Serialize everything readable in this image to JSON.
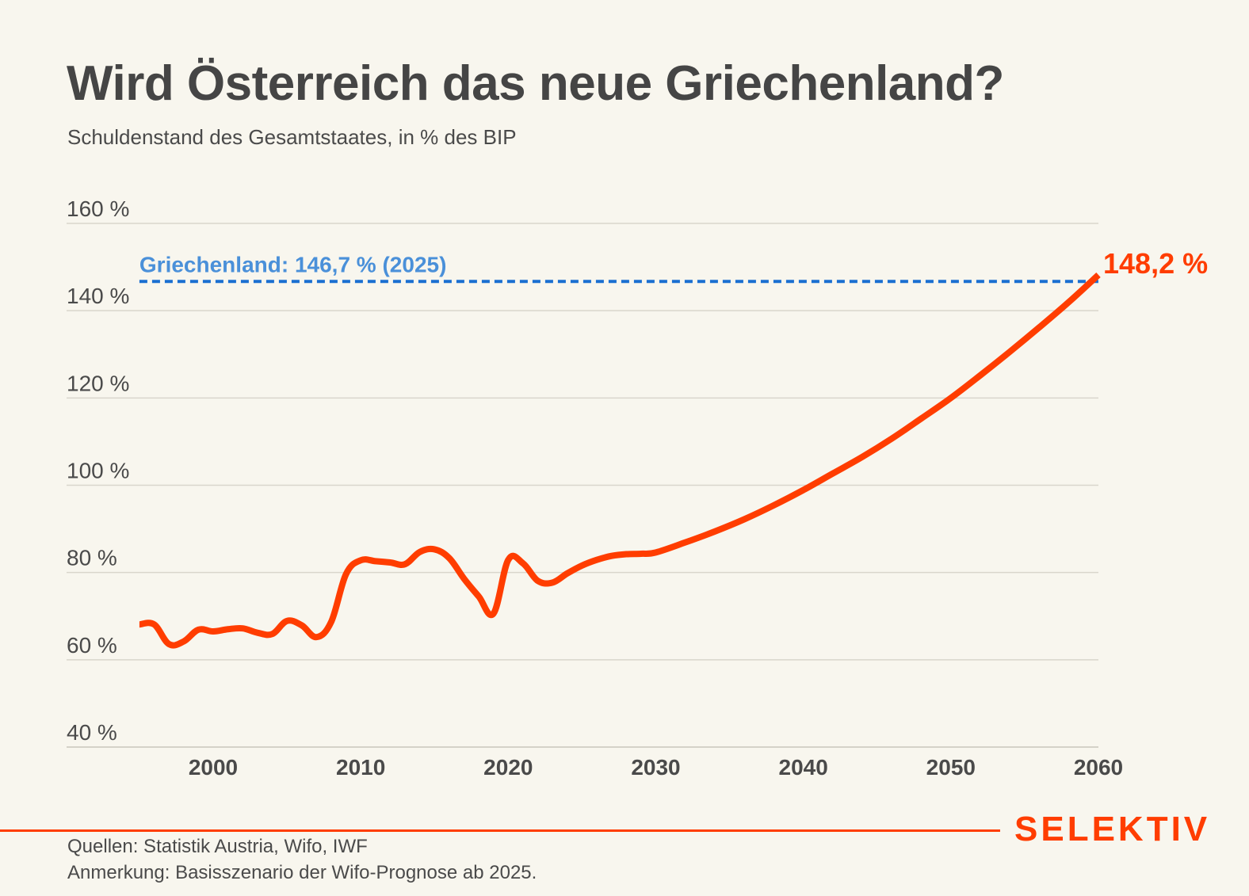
{
  "header": {
    "title": "Wird Österreich das neue Griechenland?",
    "subtitle": "Schuldenstand des Gesamtstaates, in % des BIP"
  },
  "chart_data": {
    "type": "line",
    "title": "Wird Österreich das neue Griechenland?",
    "subtitle": "Schuldenstand des Gesamtstaates, in % des BIP",
    "xlabel": "",
    "ylabel": "",
    "xlim": [
      1995,
      2060
    ],
    "ylim": [
      40,
      160
    ],
    "grid": true,
    "y_ticks": [
      160,
      140,
      120,
      100,
      80,
      60,
      40
    ],
    "y_tick_labels": [
      "160 %",
      "140 %",
      "120 %",
      "100 %",
      "80 %",
      "60 %",
      "40 %"
    ],
    "x_ticks": [
      2000,
      2010,
      2020,
      2030,
      2040,
      2050,
      2060
    ],
    "x_tick_labels": [
      "2000",
      "2010",
      "2020",
      "2030",
      "2040",
      "2050",
      "2060"
    ],
    "series": [
      {
        "name": "Österreich",
        "color": "#ff3d00",
        "x": [
          1995,
          1996,
          1997,
          1998,
          1999,
          2000,
          2001,
          2002,
          2003,
          2004,
          2005,
          2006,
          2007,
          2008,
          2009,
          2010,
          2011,
          2012,
          2013,
          2014,
          2015,
          2016,
          2017,
          2018,
          2019,
          2020,
          2021,
          2022,
          2023,
          2024,
          2025,
          2026,
          2027,
          2028,
          2029,
          2030,
          2032,
          2034,
          2036,
          2038,
          2040,
          2042,
          2044,
          2046,
          2048,
          2050,
          2052,
          2054,
          2056,
          2058,
          2060
        ],
        "values": [
          68.1,
          68.1,
          63.6,
          64.2,
          66.9,
          66.5,
          67.0,
          67.2,
          66.2,
          65.9,
          68.9,
          67.9,
          65.2,
          68.7,
          79.6,
          82.8,
          82.6,
          82.3,
          81.9,
          84.7,
          85.3,
          83.3,
          78.6,
          74.5,
          70.6,
          82.9,
          82.1,
          78.1,
          77.7,
          79.8,
          81.6,
          82.9,
          83.8,
          84.2,
          84.3,
          84.6,
          86.9,
          89.4,
          92.2,
          95.4,
          98.9,
          102.7,
          106.5,
          110.7,
          115.3,
          120.0,
          125.2,
          130.6,
          136.2,
          142.0,
          148.2
        ],
        "end_label": "148,2 %"
      }
    ],
    "reference_lines": [
      {
        "name": "Griechenland",
        "value": 146.7,
        "x_start": 1995,
        "x_end": 2060,
        "style": "dashed",
        "color": "#1a6fd1",
        "label": "Griechenland: 146,7 % (2025)",
        "label_color": "#4a90d9"
      }
    ]
  },
  "footer": {
    "sources": "Quellen: Statistik Austria, Wifo, IWF",
    "note": "Anmerkung: Basisszenario der Wifo-Prognose ab 2025.",
    "brand": "SELEKTIV",
    "brand_color": "#ff3d00"
  }
}
